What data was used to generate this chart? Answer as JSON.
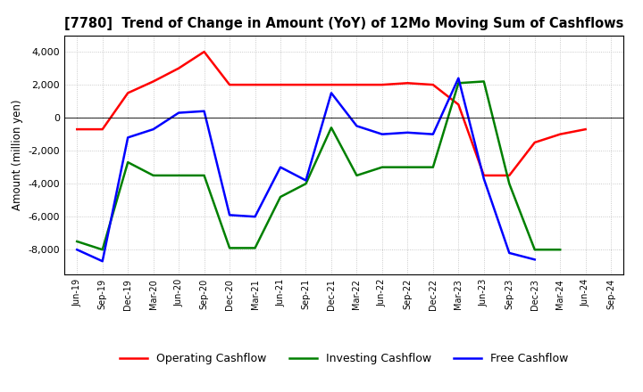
{
  "title": "[7780]  Trend of Change in Amount (YoY) of 12Mo Moving Sum of Cashflows",
  "ylabel": "Amount (million yen)",
  "x_labels": [
    "Jun-19",
    "Sep-19",
    "Dec-19",
    "Mar-20",
    "Jun-20",
    "Sep-20",
    "Dec-20",
    "Mar-21",
    "Jun-21",
    "Sep-21",
    "Dec-21",
    "Mar-22",
    "Jun-22",
    "Sep-22",
    "Dec-22",
    "Mar-23",
    "Jun-23",
    "Sep-23",
    "Dec-23",
    "Mar-24",
    "Jun-24",
    "Sep-24"
  ],
  "operating": [
    -700,
    -700,
    1500,
    2200,
    3000,
    4000,
    2000,
    2000,
    2000,
    2000,
    2000,
    2000,
    2000,
    2100,
    2000,
    800,
    -3500,
    -3500,
    -1500,
    -1000,
    -700,
    null
  ],
  "investing": [
    -7500,
    -8000,
    -2700,
    -3500,
    -3500,
    -3500,
    -7900,
    -7900,
    -4800,
    -4000,
    -600,
    -3500,
    -3000,
    -3000,
    -3000,
    2100,
    2200,
    -4000,
    -8000,
    -8000,
    null,
    null
  ],
  "free": [
    -8000,
    -8700,
    -1200,
    -700,
    300,
    400,
    -5900,
    -6000,
    -3000,
    -3800,
    1500,
    -500,
    -1000,
    -900,
    -1000,
    2400,
    -3700,
    -8200,
    -8600,
    null,
    null,
    null
  ],
  "operating_color": "#ff0000",
  "investing_color": "#008000",
  "free_color": "#0000ff",
  "ylim": [
    -9500,
    5000
  ],
  "yticks": [
    -8000,
    -6000,
    -4000,
    -2000,
    0,
    2000,
    4000
  ],
  "background_color": "#ffffff",
  "grid_color": "#bbbbbb"
}
